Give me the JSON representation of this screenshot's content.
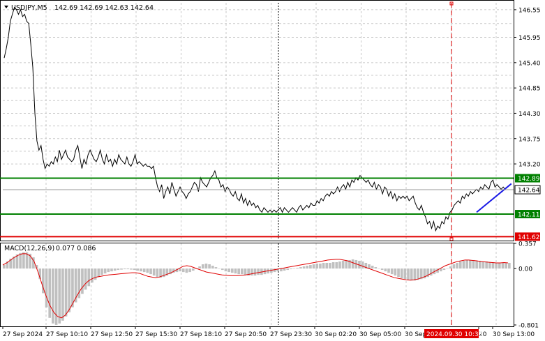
{
  "header": {
    "symbol": "USDJPY,M5",
    "ohlc": "142.69 142.69 142.63 142.64",
    "macd_label": "MACD(12,26,9)",
    "macd_values": "0.077 0.086"
  },
  "colors": {
    "price_line": "#000000",
    "grid": "#c8c8c8",
    "support_resistance": "#008000",
    "red_level": "#e00000",
    "trend_line": "#1a1ae6",
    "histogram": "#c0c0c0",
    "signal": "#e00000",
    "marker": "#e00000"
  },
  "chart_data": [
    {
      "type": "line",
      "title": "USDJPY,M5",
      "ylim": [
        141.55,
        146.7
      ],
      "y_ticks": [
        "146.55",
        "145.95",
        "145.40",
        "144.85",
        "144.30",
        "143.75",
        "143.20"
      ],
      "series": [
        {
          "values": [
            145.5,
            145.7,
            145.95,
            146.3,
            146.45,
            146.6,
            146.55,
            146.45,
            146.55,
            146.4,
            146.45,
            146.3,
            146.25,
            145.8,
            145.3,
            144.3,
            143.7,
            143.5,
            143.6,
            143.3,
            143.1,
            143.2,
            143.15,
            143.25,
            143.2,
            143.35,
            143.25,
            143.5,
            143.3,
            143.4,
            143.5,
            143.35,
            143.3,
            143.25,
            143.3,
            143.5,
            143.6,
            143.35,
            143.1,
            143.3,
            143.2,
            143.4,
            143.5,
            143.4,
            143.3,
            143.25,
            143.35,
            143.5,
            143.3,
            143.2,
            143.4,
            143.25,
            143.3,
            143.15,
            143.3,
            143.2,
            143.4,
            143.3,
            143.25,
            143.2,
            143.35,
            143.2,
            143.15,
            143.25,
            143.4,
            143.2,
            143.25,
            143.2,
            143.15,
            143.2,
            143.15,
            143.15,
            143.1,
            143.15,
            142.9,
            142.7,
            142.6,
            142.75,
            142.45,
            142.6,
            142.7,
            142.55,
            142.8,
            142.65,
            142.5,
            142.6,
            142.7,
            142.6,
            142.55,
            142.45,
            142.55,
            142.6,
            142.7,
            142.8,
            142.75,
            142.6,
            142.9,
            142.8,
            142.75,
            142.7,
            142.8,
            142.9,
            142.95,
            143.05,
            142.9,
            142.85,
            142.7,
            142.75,
            142.6,
            142.7,
            142.65,
            142.55,
            142.5,
            142.6,
            142.45,
            142.4,
            142.55,
            142.35,
            142.45,
            142.3,
            142.4,
            142.3,
            142.35,
            142.25,
            142.3,
            142.2,
            142.15,
            142.25,
            142.2,
            142.15,
            142.2,
            142.15,
            142.2,
            142.15,
            142.2,
            142.25,
            142.15,
            142.25,
            142.2,
            142.15,
            142.2,
            142.25,
            142.2,
            142.15,
            142.25,
            142.3,
            142.2,
            142.25,
            142.3,
            142.25,
            142.35,
            142.3,
            142.3,
            142.4,
            142.35,
            142.45,
            142.4,
            142.5,
            142.55,
            142.5,
            142.6,
            142.55,
            142.6,
            142.7,
            142.6,
            142.7,
            142.75,
            142.65,
            142.8,
            142.7,
            142.85,
            142.8,
            142.9,
            142.85,
            142.95,
            142.9,
            142.85,
            142.8,
            142.85,
            142.75,
            142.7,
            142.8,
            142.65,
            142.75,
            142.7,
            142.55,
            142.7,
            142.65,
            142.5,
            142.6,
            142.45,
            142.55,
            142.4,
            142.5,
            142.45,
            142.5,
            142.45,
            142.5,
            142.4,
            142.45,
            142.5,
            142.35,
            142.25,
            142.2,
            142.3,
            142.15,
            142.05,
            141.9,
            141.95,
            141.8,
            141.95,
            141.75,
            141.85,
            141.8,
            141.95,
            141.9,
            142.05,
            142.0,
            142.15,
            142.2,
            142.3,
            142.35,
            142.4,
            142.35,
            142.5,
            142.45,
            142.55,
            142.5,
            142.6,
            142.55,
            142.6,
            142.65,
            142.6,
            142.7,
            142.65,
            142.75,
            142.7,
            142.65,
            142.8,
            142.85,
            142.7,
            142.75,
            142.7,
            142.65,
            142.7,
            142.64
          ]
        }
      ],
      "levels": [
        {
          "value": 142.89,
          "label": "142.89",
          "color": "#008000"
        },
        {
          "value": 142.64,
          "label": "142.64",
          "color": "#000000"
        },
        {
          "value": 142.11,
          "label": "142.11",
          "color": "#008000"
        },
        {
          "value": 141.62,
          "label": "141.62",
          "color": "#e00000"
        }
      ],
      "trend_line": {
        "from": [
          231,
          142.15
        ],
        "to": [
          248,
          142.77
        ]
      },
      "marker_label": "2024.09.30 10:30",
      "x_tick_labels": [
        "27 Sep 2024",
        "27 Sep 10:10",
        "27 Sep 12:50",
        "27 Sep 15:30",
        "27 Sep 18:10",
        "27 Sep 20:50",
        "27 Sep 23:30",
        "30 Sep 02:20",
        "30 Sep 05:00",
        "30 Sep",
        "20",
        "30 Sep 13:00"
      ],
      "grid": true
    },
    {
      "type": "bar",
      "title": "MACD(12,26,9)",
      "ylim": [
        -0.801,
        0.357
      ],
      "y_ticks": [
        "0.357",
        "0.00",
        "-0.801"
      ],
      "histogram": [
        0.05,
        0.1,
        0.14,
        0.17,
        0.2,
        0.22,
        0.23,
        0.23,
        0.21,
        0.16,
        0.05,
        -0.15,
        -0.35,
        -0.55,
        -0.7,
        -0.78,
        -0.8,
        -0.78,
        -0.74,
        -0.68,
        -0.62,
        -0.55,
        -0.48,
        -0.42,
        -0.36,
        -0.3,
        -0.25,
        -0.2,
        -0.16,
        -0.12,
        -0.09,
        -0.07,
        -0.05,
        -0.04,
        -0.03,
        -0.02,
        -0.015,
        -0.01,
        -0.01,
        -0.015,
        -0.02,
        -0.03,
        -0.04,
        -0.05,
        -0.06,
        -0.08,
        -0.1,
        -0.12,
        -0.13,
        -0.12,
        -0.1,
        -0.08,
        -0.06,
        -0.05,
        -0.04,
        -0.05,
        -0.06,
        -0.05,
        -0.03,
        0.0,
        0.03,
        0.06,
        0.07,
        0.06,
        0.04,
        0.02,
        0.0,
        -0.02,
        -0.04,
        -0.05,
        -0.06,
        -0.07,
        -0.08,
        -0.08,
        -0.09,
        -0.1,
        -0.1,
        -0.1,
        -0.09,
        -0.09,
        -0.08,
        -0.07,
        -0.06,
        -0.05,
        -0.04,
        -0.04,
        -0.03,
        -0.02,
        -0.01,
        0.0,
        0.01,
        0.02,
        0.03,
        0.04,
        0.05,
        0.06,
        0.07,
        0.07,
        0.08,
        0.08,
        0.08,
        0.09,
        0.09,
        0.1,
        0.11,
        0.12,
        0.12,
        0.13,
        0.12,
        0.11,
        0.1,
        0.08,
        0.06,
        0.04,
        0.02,
        0.0,
        -0.02,
        -0.04,
        -0.06,
        -0.08,
        -0.1,
        -0.12,
        -0.14,
        -0.15,
        -0.16,
        -0.17,
        -0.17,
        -0.16,
        -0.15,
        -0.14,
        -0.12,
        -0.1,
        -0.08,
        -0.06,
        -0.04,
        -0.02,
        0.0,
        0.03,
        0.06,
        0.08,
        0.1,
        0.11,
        0.12,
        0.12,
        0.12,
        0.11,
        0.11,
        0.1,
        0.1,
        0.09,
        0.09,
        0.08,
        0.08,
        0.08,
        0.08,
        0.08
      ],
      "signal": [
        0.05,
        0.08,
        0.12,
        0.16,
        0.19,
        0.21,
        0.21,
        0.18,
        0.1,
        -0.05,
        -0.22,
        -0.38,
        -0.52,
        -0.62,
        -0.68,
        -0.7,
        -0.66,
        -0.58,
        -0.48,
        -0.38,
        -0.29,
        -0.22,
        -0.17,
        -0.14,
        -0.12,
        -0.11,
        -0.1,
        -0.09,
        -0.085,
        -0.08,
        -0.075,
        -0.07,
        -0.065,
        -0.06,
        -0.06,
        -0.07,
        -0.09,
        -0.11,
        -0.12,
        -0.13,
        -0.12,
        -0.1,
        -0.08,
        -0.06,
        -0.03,
        0.0,
        0.03,
        0.04,
        0.03,
        0.01,
        -0.01,
        -0.03,
        -0.05,
        -0.06,
        -0.07,
        -0.08,
        -0.09,
        -0.095,
        -0.1,
        -0.1,
        -0.1,
        -0.095,
        -0.09,
        -0.08,
        -0.07,
        -0.06,
        -0.05,
        -0.04,
        -0.03,
        -0.02,
        -0.01,
        0.0,
        0.01,
        0.02,
        0.03,
        0.04,
        0.05,
        0.06,
        0.07,
        0.08,
        0.09,
        0.1,
        0.11,
        0.12,
        0.125,
        0.13,
        0.13,
        0.12,
        0.11,
        0.09,
        0.07,
        0.05,
        0.03,
        0.01,
        -0.01,
        -0.03,
        -0.05,
        -0.07,
        -0.09,
        -0.11,
        -0.13,
        -0.14,
        -0.15,
        -0.16,
        -0.165,
        -0.16,
        -0.15,
        -0.13,
        -0.11,
        -0.08,
        -0.05,
        -0.02,
        0.01,
        0.04,
        0.06,
        0.08,
        0.1,
        0.11,
        0.12,
        0.12,
        0.115,
        0.11,
        0.1,
        0.095,
        0.09,
        0.085,
        0.08,
        0.08,
        0.085,
        0.08
      ]
    }
  ]
}
